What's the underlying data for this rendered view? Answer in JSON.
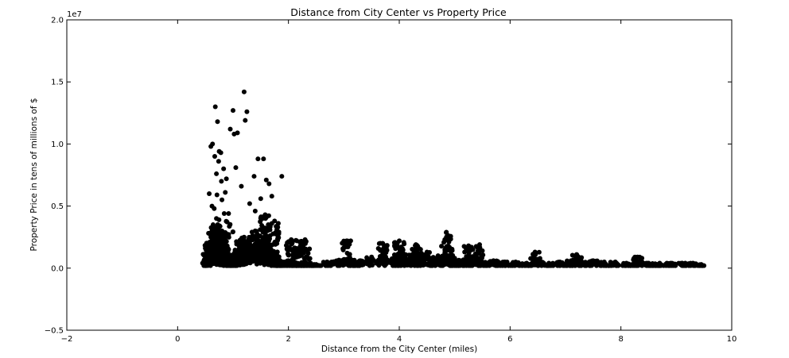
{
  "chart_data": {
    "type": "scatter",
    "title": "Distance from City Center vs Property Price",
    "xlabel": "Distance from the City Center (miles)",
    "ylabel": "Property Price in tens of millions of $",
    "y_offset_label": "1e7",
    "xlim": [
      -2,
      10
    ],
    "ylim": [
      -5000000,
      20000000
    ],
    "x_ticks": [
      -2,
      0,
      2,
      4,
      6,
      8,
      10
    ],
    "x_tick_labels": [
      "−2",
      "0",
      "2",
      "4",
      "6",
      "8",
      "10"
    ],
    "y_ticks": [
      -5000000,
      0,
      5000000,
      10000000,
      15000000,
      20000000
    ],
    "y_tick_labels": [
      "−0.5",
      "0.0",
      "0.5",
      "1.0",
      "1.5",
      "2.0"
    ],
    "grid": false,
    "marker_color": "#000000",
    "series": [
      {
        "x": [
          0.45,
          0.52,
          0.55,
          0.58,
          0.6,
          0.62,
          0.64,
          0.66,
          0.68,
          0.7,
          0.72,
          0.74,
          0.76,
          0.78,
          0.8,
          0.82,
          0.84,
          0.86,
          0.88,
          0.9,
          0.92,
          0.95,
          0.98,
          1.0,
          1.05,
          1.1,
          1.15,
          1.2,
          1.25,
          1.3,
          1.35,
          1.4,
          1.45,
          1.5,
          1.55,
          1.6,
          1.65,
          1.7,
          1.75,
          1.8,
          1.85,
          1.9,
          2.0,
          2.1,
          2.2,
          2.3,
          2.4,
          2.5,
          2.7,
          2.9,
          3.0,
          3.1,
          3.2,
          3.3,
          3.5,
          3.7,
          3.9,
          4.0,
          4.1,
          4.2,
          4.3,
          4.4,
          4.5,
          4.6,
          4.7,
          4.8,
          4.9,
          5.0,
          5.1,
          5.2,
          5.3,
          5.5,
          5.7,
          5.9,
          6.1,
          6.3,
          6.5,
          6.7,
          6.9,
          7.1,
          7.3,
          7.5,
          7.7,
          7.9,
          8.1,
          8.3,
          8.5,
          8.7,
          8.9,
          9.1,
          9.3,
          9.45,
          0.68,
          0.6,
          0.72,
          0.75,
          0.78,
          0.83,
          0.88,
          0.95,
          1.0,
          1.02,
          1.05,
          1.08,
          1.2,
          1.22,
          1.25,
          1.38,
          1.45,
          1.55,
          1.6,
          1.7,
          1.88,
          0.63,
          0.67,
          0.7,
          0.74,
          0.79,
          0.86,
          1.15,
          1.5,
          1.65,
          0.57,
          0.62,
          0.66,
          0.71,
          0.8,
          0.92,
          1.3,
          1.4,
          1.58,
          1.75,
          2.05,
          2.15,
          2.3,
          3.05,
          3.7,
          4.0,
          4.3,
          4.85,
          4.88,
          5.25,
          5.45,
          6.45,
          7.2,
          8.3
        ],
        "y": [
          400000,
          600000,
          1200000,
          2000000,
          2500000,
          3000000,
          3500000,
          1800000,
          2200000,
          4000000,
          3200000,
          2600000,
          1600000,
          2400000,
          3000000,
          2000000,
          1500000,
          1000000,
          800000,
          1200000,
          900000,
          700000,
          600000,
          500000,
          1200000,
          1500000,
          2200000,
          2500000,
          1800000,
          2000000,
          2600000,
          3000000,
          2200000,
          1800000,
          2400000,
          3200000,
          1500000,
          1200000,
          1000000,
          700000,
          600000,
          500000,
          600000,
          400000,
          300000,
          500000,
          400000,
          300000,
          500000,
          600000,
          700000,
          800000,
          500000,
          600000,
          900000,
          1000000,
          800000,
          1200000,
          1100000,
          1000000,
          900000,
          1200000,
          1300000,
          800000,
          1000000,
          900000,
          700000,
          800000,
          600000,
          700000,
          600000,
          500000,
          600000,
          500000,
          500000,
          400000,
          500000,
          400000,
          500000,
          600000,
          500000,
          600000,
          500000,
          500000,
          400000,
          500000,
          400000,
          400000,
          400000,
          400000,
          400000,
          300000,
          13000000,
          9800000,
          11800000,
          9400000,
          9300000,
          8000000,
          7200000,
          11200000,
          12700000,
          10800000,
          8100000,
          10900000,
          14200000,
          11900000,
          12600000,
          7400000,
          8800000,
          8800000,
          7100000,
          5800000,
          7400000,
          10000000,
          9000000,
          7600000,
          8600000,
          7000000,
          6100000,
          6600000,
          5600000,
          6800000,
          6000000,
          5000000,
          4800000,
          5900000,
          5500000,
          4400000,
          5200000,
          4600000,
          4300000,
          3800000,
          2300000,
          2200000,
          2300000,
          2200000,
          2000000,
          2200000,
          1900000,
          2900000,
          2300000,
          1800000,
          1900000,
          1300000,
          1100000,
          900000
        ]
      }
    ]
  }
}
